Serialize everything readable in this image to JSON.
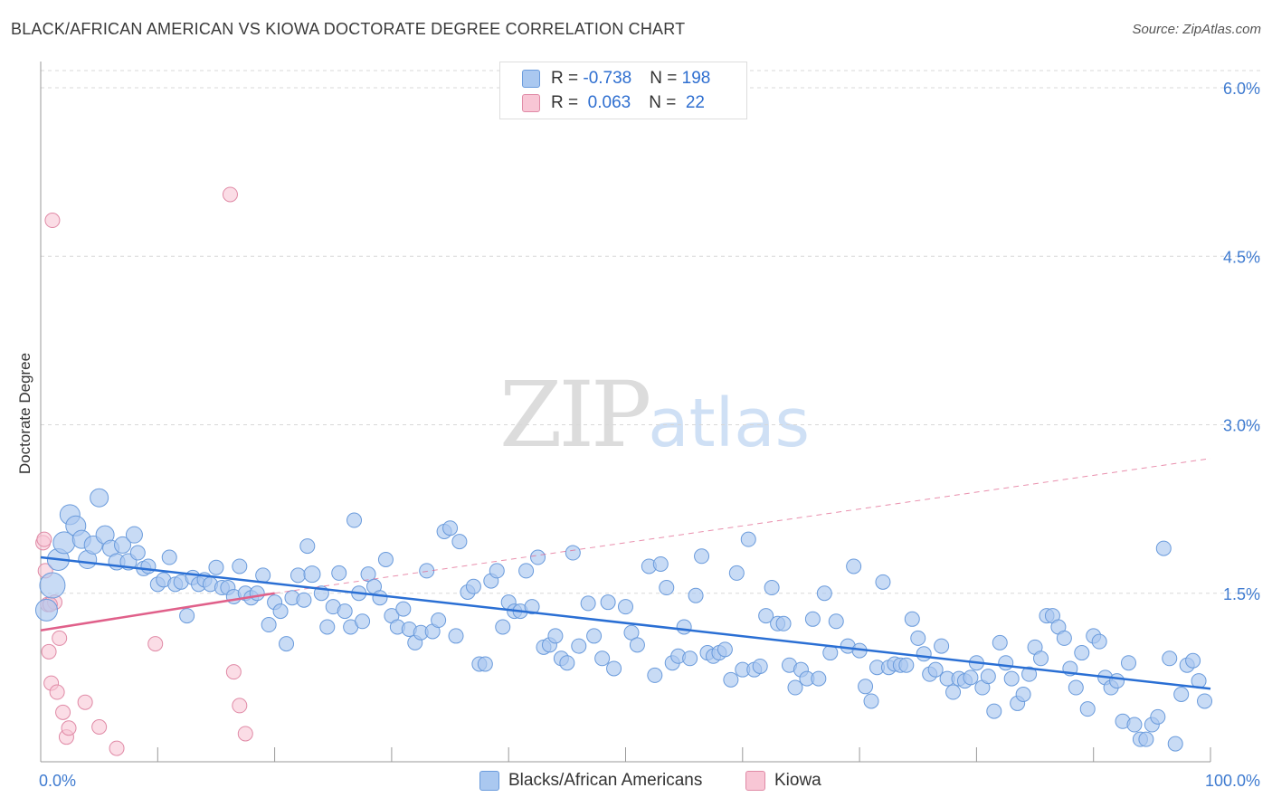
{
  "title": "BLACK/AFRICAN AMERICAN VS KIOWA DOCTORATE DEGREE CORRELATION CHART",
  "source": "Source: ZipAtlas.com",
  "watermark": {
    "zip": "ZIP",
    "atlas": "atlas"
  },
  "legend": {
    "rows": [
      {
        "r_label": "R = ",
        "r_value": "-0.738",
        "n_label": "N = ",
        "n_value": "198",
        "color": "#aac8f0"
      },
      {
        "r_label": "R = ",
        "r_value": " 0.063",
        "n_label": "N = ",
        "n_value": " 22",
        "color": "#f5b8cb"
      }
    ]
  },
  "bottom_legend": {
    "blue_label": "Blacks/African Americans",
    "pink_label": "Kiowa"
  },
  "colors": {
    "blue_fill": "#aac8f0",
    "blue_stroke": "#6a9bdc",
    "blue_line": "#2a6fd4",
    "pink_fill": "#f8c6d5",
    "pink_stroke": "#e08aa6",
    "pink_line": "#e0608a",
    "tick_text": "#3f7bd0",
    "grid": "#d8d8d8"
  },
  "chart_data": {
    "type": "scatter",
    "title": "BLACK/AFRICAN AMERICAN VS KIOWA DOCTORATE DEGREE CORRELATION CHART",
    "xlabel": "",
    "ylabel": "Doctorate Degree",
    "xlim": [
      0,
      100
    ],
    "ylim": [
      0,
      6.3
    ],
    "x_tick_labels": [
      "0.0%",
      "100.0%"
    ],
    "y_ticks": [
      1.5,
      3.0,
      4.5,
      6.0
    ],
    "y_tick_labels": [
      "1.5%",
      "3.0%",
      "4.5%",
      "6.0%"
    ],
    "series": [
      {
        "name": "Blacks/African Americans",
        "r": -0.738,
        "n": 198,
        "trend": {
          "x": [
            0,
            100
          ],
          "y": [
            1.82,
            0.65
          ]
        },
        "points": [
          [
            0.5,
            1.35,
            12
          ],
          [
            1,
            1.57,
            14
          ],
          [
            1.5,
            1.8,
            12
          ],
          [
            2,
            1.95,
            12
          ],
          [
            2.5,
            2.2,
            11
          ],
          [
            3,
            2.1,
            11
          ],
          [
            3.5,
            1.98,
            10
          ],
          [
            4,
            1.8,
            10
          ],
          [
            4.5,
            1.93,
            10
          ],
          [
            5,
            2.35,
            10
          ],
          [
            5.5,
            2.02,
            10
          ],
          [
            6,
            1.9,
            9
          ],
          [
            6.5,
            1.78,
            9
          ],
          [
            7,
            1.93,
            9
          ],
          [
            7.5,
            1.78,
            9
          ],
          [
            8,
            2.02,
            9
          ],
          [
            8.3,
            1.86,
            8
          ],
          [
            8.8,
            1.72,
            8
          ],
          [
            9.2,
            1.74,
            8
          ],
          [
            10,
            1.58,
            8
          ],
          [
            10.5,
            1.62,
            8
          ],
          [
            11,
            1.82,
            8
          ],
          [
            11.5,
            1.58,
            8
          ],
          [
            12,
            1.6,
            8
          ],
          [
            12.5,
            1.3,
            8
          ],
          [
            13,
            1.64,
            8
          ],
          [
            13.5,
            1.58,
            8
          ],
          [
            14,
            1.62,
            8
          ],
          [
            14.5,
            1.58,
            8
          ],
          [
            15,
            1.73,
            8
          ],
          [
            15.5,
            1.55,
            8
          ],
          [
            16,
            1.55,
            8
          ],
          [
            16.5,
            1.47,
            8
          ],
          [
            17,
            1.74,
            8
          ],
          [
            17.5,
            1.5,
            8
          ],
          [
            18,
            1.46,
            8
          ],
          [
            18.5,
            1.5,
            8
          ],
          [
            19,
            1.66,
            8
          ],
          [
            19.5,
            1.22,
            8
          ],
          [
            20,
            1.42,
            8
          ],
          [
            20.5,
            1.34,
            8
          ],
          [
            21,
            1.05,
            8
          ],
          [
            21.5,
            1.46,
            8
          ],
          [
            22,
            1.66,
            8
          ],
          [
            22.5,
            1.44,
            8
          ],
          [
            22.8,
            1.92,
            8
          ],
          [
            23.2,
            1.67,
            9
          ],
          [
            24,
            1.5,
            8
          ],
          [
            24.5,
            1.2,
            8
          ],
          [
            25,
            1.38,
            8
          ],
          [
            25.5,
            1.68,
            8
          ],
          [
            26,
            1.34,
            8
          ],
          [
            26.5,
            1.2,
            8
          ],
          [
            26.8,
            2.15,
            8
          ],
          [
            27.2,
            1.5,
            8
          ],
          [
            27.5,
            1.25,
            8
          ],
          [
            28,
            1.67,
            8
          ],
          [
            28.5,
            1.56,
            8
          ],
          [
            29,
            1.46,
            8
          ],
          [
            29.5,
            1.8,
            8
          ],
          [
            30,
            1.3,
            8
          ],
          [
            30.5,
            1.2,
            8
          ],
          [
            31,
            1.36,
            8
          ],
          [
            31.5,
            1.18,
            8
          ],
          [
            32,
            1.06,
            8
          ],
          [
            32.5,
            1.15,
            8
          ],
          [
            33,
            1.7,
            8
          ],
          [
            33.5,
            1.16,
            8
          ],
          [
            34,
            1.26,
            8
          ],
          [
            34.5,
            2.05,
            8
          ],
          [
            35,
            2.08,
            8
          ],
          [
            35.5,
            1.12,
            8
          ],
          [
            35.8,
            1.96,
            8
          ],
          [
            36.5,
            1.51,
            8
          ],
          [
            37,
            1.56,
            8
          ],
          [
            37.5,
            0.87,
            8
          ],
          [
            38,
            0.87,
            8
          ],
          [
            38.5,
            1.61,
            8
          ],
          [
            39,
            1.7,
            8
          ],
          [
            39.5,
            1.2,
            8
          ],
          [
            40,
            1.42,
            8
          ],
          [
            40.5,
            1.34,
            8
          ],
          [
            41,
            1.34,
            8
          ],
          [
            41.5,
            1.7,
            8
          ],
          [
            42,
            1.38,
            8
          ],
          [
            42.5,
            1.82,
            8
          ],
          [
            43,
            1.02,
            8
          ],
          [
            43.5,
            1.04,
            8
          ],
          [
            44,
            1.12,
            8
          ],
          [
            44.5,
            0.92,
            8
          ],
          [
            45,
            0.88,
            8
          ],
          [
            45.5,
            1.86,
            8
          ],
          [
            46,
            1.03,
            8
          ],
          [
            46.8,
            1.41,
            8
          ],
          [
            47.3,
            1.12,
            8
          ],
          [
            48,
            0.92,
            8
          ],
          [
            48.5,
            1.42,
            8
          ],
          [
            49,
            0.83,
            8
          ],
          [
            50,
            1.38,
            8
          ],
          [
            50.5,
            1.15,
            8
          ],
          [
            51,
            1.04,
            8
          ],
          [
            52,
            1.74,
            8
          ],
          [
            52.5,
            0.77,
            8
          ],
          [
            53,
            1.76,
            8
          ],
          [
            53.5,
            1.55,
            8
          ],
          [
            54,
            0.88,
            8
          ],
          [
            54.5,
            0.94,
            8
          ],
          [
            55,
            1.2,
            8
          ],
          [
            55.5,
            0.92,
            8
          ],
          [
            56,
            1.48,
            8
          ],
          [
            56.5,
            1.83,
            8
          ],
          [
            57,
            0.97,
            8
          ],
          [
            57.5,
            0.94,
            8
          ],
          [
            58,
            0.97,
            8
          ],
          [
            58.5,
            1.0,
            8
          ],
          [
            59,
            0.73,
            8
          ],
          [
            59.5,
            1.68,
            8
          ],
          [
            60,
            0.82,
            8
          ],
          [
            60.5,
            1.98,
            8
          ],
          [
            61,
            0.82,
            8
          ],
          [
            61.5,
            0.85,
            8
          ],
          [
            62,
            1.3,
            8
          ],
          [
            62.5,
            1.55,
            8
          ],
          [
            63,
            1.23,
            8
          ],
          [
            63.5,
            1.23,
            8
          ],
          [
            64,
            0.86,
            8
          ],
          [
            64.5,
            0.66,
            8
          ],
          [
            65,
            0.82,
            8
          ],
          [
            65.5,
            0.74,
            8
          ],
          [
            66,
            1.27,
            8
          ],
          [
            66.5,
            0.74,
            8
          ],
          [
            67,
            1.5,
            8
          ],
          [
            67.5,
            0.97,
            8
          ],
          [
            68,
            1.25,
            8
          ],
          [
            69,
            1.03,
            8
          ],
          [
            69.5,
            1.74,
            8
          ],
          [
            70,
            0.99,
            8
          ],
          [
            70.5,
            0.67,
            8
          ],
          [
            71,
            0.54,
            8
          ],
          [
            71.5,
            0.84,
            8
          ],
          [
            72,
            1.6,
            8
          ],
          [
            72.5,
            0.84,
            8
          ],
          [
            73,
            0.87,
            8
          ],
          [
            73.5,
            0.86,
            8
          ],
          [
            74,
            0.86,
            8
          ],
          [
            74.5,
            1.27,
            8
          ],
          [
            75,
            1.1,
            8
          ],
          [
            75.5,
            0.96,
            8
          ],
          [
            76,
            0.78,
            8
          ],
          [
            76.5,
            0.82,
            8
          ],
          [
            77,
            1.03,
            8
          ],
          [
            77.5,
            0.74,
            8
          ],
          [
            78,
            0.62,
            8
          ],
          [
            78.5,
            0.74,
            8
          ],
          [
            79,
            0.72,
            8
          ],
          [
            79.5,
            0.75,
            8
          ],
          [
            80,
            0.88,
            8
          ],
          [
            80.5,
            0.66,
            8
          ],
          [
            81,
            0.76,
            8
          ],
          [
            81.5,
            0.45,
            8
          ],
          [
            82,
            1.06,
            8
          ],
          [
            82.5,
            0.88,
            8
          ],
          [
            83,
            0.74,
            8
          ],
          [
            83.5,
            0.52,
            8
          ],
          [
            84,
            0.6,
            8
          ],
          [
            84.5,
            0.78,
            8
          ],
          [
            85,
            1.02,
            8
          ],
          [
            85.5,
            0.92,
            8
          ],
          [
            86,
            1.3,
            8
          ],
          [
            86.5,
            1.3,
            8
          ],
          [
            87,
            1.2,
            8
          ],
          [
            87.5,
            1.1,
            8
          ],
          [
            88,
            0.83,
            8
          ],
          [
            88.5,
            0.66,
            8
          ],
          [
            89,
            0.97,
            8
          ],
          [
            89.5,
            0.47,
            8
          ],
          [
            90,
            1.12,
            8
          ],
          [
            90.5,
            1.07,
            8
          ],
          [
            91,
            0.75,
            8
          ],
          [
            91.5,
            0.66,
            8
          ],
          [
            92,
            0.72,
            8
          ],
          [
            92.5,
            0.36,
            8
          ],
          [
            93,
            0.88,
            8
          ],
          [
            93.5,
            0.33,
            8
          ],
          [
            94,
            0.2,
            8
          ],
          [
            94.5,
            0.2,
            8
          ],
          [
            95,
            0.33,
            8
          ],
          [
            95.5,
            0.4,
            8
          ],
          [
            96,
            1.9,
            8
          ],
          [
            96.5,
            0.92,
            8
          ],
          [
            97,
            0.16,
            8
          ],
          [
            97.5,
            0.6,
            8
          ],
          [
            98,
            0.86,
            8
          ],
          [
            98.5,
            0.9,
            8
          ],
          [
            99,
            0.72,
            8
          ],
          [
            99.5,
            0.54,
            8
          ]
        ]
      },
      {
        "name": "Kiowa",
        "r": 0.063,
        "n": 22,
        "trend_solid": {
          "x": [
            0,
            20
          ],
          "y": [
            1.17,
            1.5
          ]
        },
        "trend_dashed": {
          "x": [
            20,
            100
          ],
          "y": [
            1.5,
            2.7
          ]
        },
        "points": [
          [
            0.2,
            1.95,
            8
          ],
          [
            0.4,
            1.7,
            8
          ],
          [
            0.6,
            1.4,
            8
          ],
          [
            0.7,
            0.98,
            8
          ],
          [
            0.9,
            0.7,
            8
          ],
          [
            1,
            4.82,
            8
          ],
          [
            1.2,
            1.42,
            8
          ],
          [
            1.4,
            0.62,
            8
          ],
          [
            1.6,
            1.1,
            8
          ],
          [
            1.9,
            0.44,
            8
          ],
          [
            2.2,
            0.22,
            8
          ],
          [
            2.4,
            0.3,
            8
          ],
          [
            3.8,
            0.53,
            8
          ],
          [
            5,
            0.31,
            8
          ],
          [
            6.5,
            0.12,
            8
          ],
          [
            9.8,
            1.05,
            8
          ],
          [
            16.2,
            5.05,
            8
          ],
          [
            16.5,
            0.8,
            8
          ],
          [
            17,
            0.5,
            8
          ],
          [
            17.5,
            0.25,
            8
          ],
          [
            0.3,
            1.98,
            8
          ],
          [
            0.8,
            1.4,
            8
          ]
        ]
      }
    ]
  }
}
